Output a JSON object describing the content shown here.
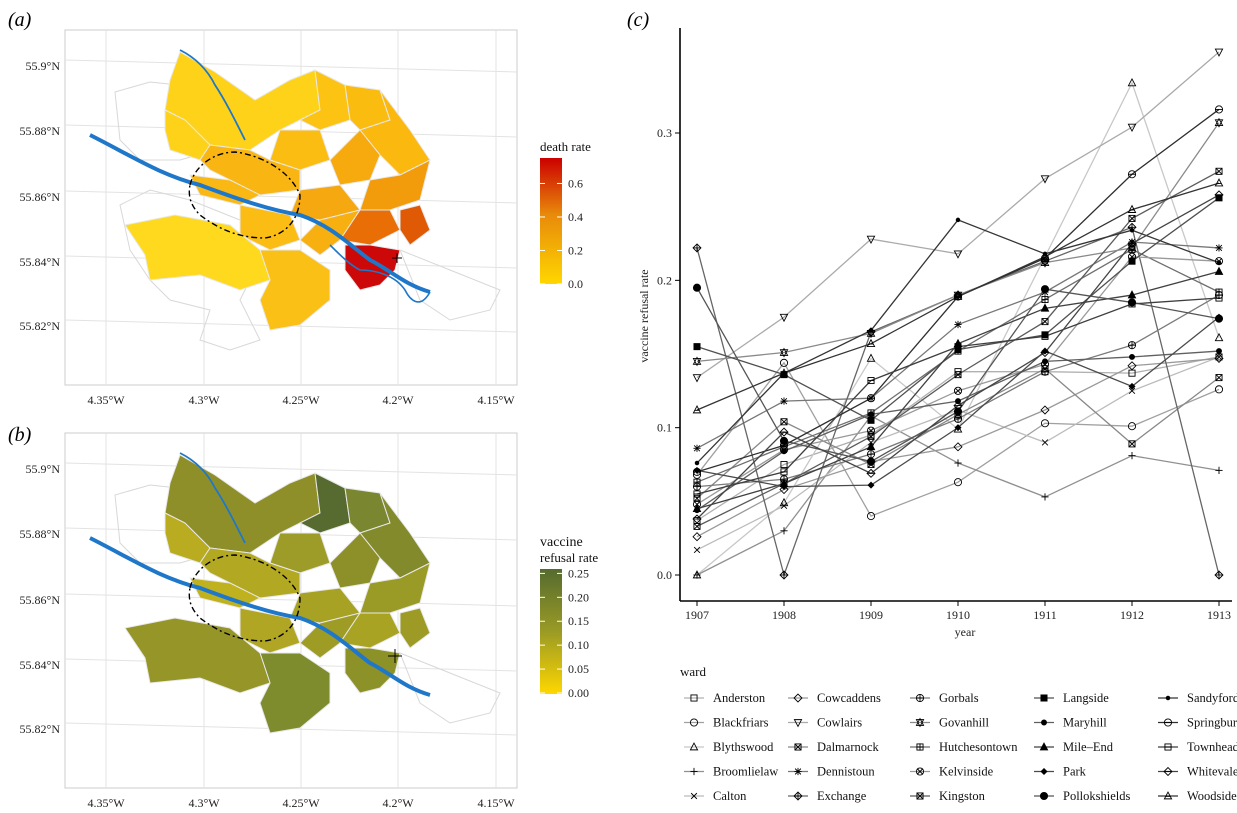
{
  "panels": {
    "a": "(a)",
    "b": "(b)",
    "c": "(c)"
  },
  "maps": {
    "lon_ticks": [
      "4.35°W",
      "4.3°W",
      "4.25°W",
      "4.2°W",
      "4.15°W"
    ],
    "lat_ticks": [
      "55.9°N",
      "55.88°N",
      "55.86°N",
      "55.84°N",
      "55.82°N"
    ],
    "river_color": "#1f77c9",
    "legend_a": {
      "title": "death rate",
      "ticks": [
        "0.6",
        "0.4",
        "0.2",
        "0.0"
      ],
      "colors": [
        "#ffd700",
        "#e05a05",
        "#cc0000"
      ]
    },
    "legend_b": {
      "title_line1": "vaccine",
      "title_line2": "refusal rate",
      "ticks": [
        "0.25",
        "0.20",
        "0.15",
        "0.10",
        "0.05",
        "0.00"
      ],
      "colors": [
        "#ffd700",
        "#6b7f2a",
        "#556b2f"
      ]
    }
  },
  "chart_data": {
    "type": "line",
    "x": [
      1907,
      1908,
      1909,
      1910,
      1911,
      1912,
      1913
    ],
    "xlabel": "year",
    "ylabel": "vaccine refusal rate",
    "ylim": [
      0,
      0.36
    ],
    "yticks": [
      "0.0",
      "0.1",
      "0.2",
      "0.3"
    ],
    "legend_title": "ward",
    "series": [
      {
        "name": "Anderston",
        "marker": "square-open",
        "color": "#b0b0b0",
        "values": [
          0.037,
          0.075,
          0.095,
          0.138,
          0.138,
          0.137,
          0.148
        ]
      },
      {
        "name": "Blackfriars",
        "marker": "circle-open",
        "color": "#a0a0a0",
        "values": [
          0.068,
          0.144,
          0.04,
          0.063,
          0.103,
          0.101,
          0.126
        ]
      },
      {
        "name": "Blythswood",
        "marker": "triangle-open",
        "color": "#c8c8c8",
        "values": [
          0.0,
          0.049,
          0.147,
          0.099,
          0.216,
          0.334,
          0.161
        ]
      },
      {
        "name": "Broomlielaw",
        "marker": "plus",
        "color": "#909090",
        "values": [
          0.0,
          0.03,
          0.108,
          0.076,
          0.053,
          0.081,
          0.071
        ]
      },
      {
        "name": "Calton",
        "marker": "x",
        "color": "#bbbbbb",
        "values": [
          0.017,
          0.047,
          0.09,
          0.112,
          0.09,
          0.125,
          0.148
        ]
      },
      {
        "name": "Cowcaddens",
        "marker": "diamond-open",
        "color": "#999999",
        "values": [
          0.026,
          0.058,
          0.077,
          0.087,
          0.112,
          0.142,
          0.147
        ]
      },
      {
        "name": "Cowlairs",
        "marker": "triangle-down-open",
        "color": "#aaaaaa",
        "values": [
          0.134,
          0.175,
          0.228,
          0.218,
          0.269,
          0.304,
          0.355
        ]
      },
      {
        "name": "Dalmarnock",
        "marker": "square-x",
        "color": "#888888",
        "values": [
          0.052,
          0.104,
          0.075,
          0.109,
          0.14,
          0.089,
          0.134
        ]
      },
      {
        "name": "Dennistoun",
        "marker": "star",
        "color": "#777777",
        "values": [
          0.086,
          0.118,
          0.12,
          0.17,
          0.192,
          0.226,
          0.222
        ]
      },
      {
        "name": "Exchange",
        "marker": "diamond-plus",
        "color": "#666666",
        "values": [
          0.222,
          0.0,
          0.165,
          0.19,
          0.213,
          0.236,
          0.0
        ]
      },
      {
        "name": "Gorbals",
        "marker": "circle-plus",
        "color": "#7a7a7a",
        "values": [
          0.06,
          0.065,
          0.082,
          0.106,
          0.138,
          0.156,
          0.19
        ]
      },
      {
        "name": "Govanhill",
        "marker": "star-of-david",
        "color": "#8a8a8a",
        "values": [
          0.145,
          0.151,
          0.164,
          0.19,
          0.212,
          0.222,
          0.307
        ]
      },
      {
        "name": "Hutchesontown",
        "marker": "square-plus",
        "color": "#6e6e6e",
        "values": [
          0.063,
          0.087,
          0.11,
          0.152,
          0.187,
          0.221,
          0.192
        ]
      },
      {
        "name": "Kelvinside",
        "marker": "circle-x",
        "color": "#9a9a9a",
        "values": [
          0.048,
          0.085,
          0.098,
          0.125,
          0.143,
          0.216,
          0.213
        ]
      },
      {
        "name": "Kingston",
        "marker": "square-x2",
        "color": "#5a5a5a",
        "values": [
          0.033,
          0.062,
          0.094,
          0.136,
          0.172,
          0.242,
          0.274
        ]
      },
      {
        "name": "Langside",
        "marker": "square-filled",
        "color": "#505050",
        "values": [
          0.155,
          0.136,
          0.105,
          0.153,
          0.163,
          0.213,
          0.256
        ]
      },
      {
        "name": "Maryhill",
        "marker": "circle-filled-small",
        "color": "#606060",
        "values": [
          0.044,
          0.084,
          0.109,
          0.118,
          0.145,
          0.148,
          0.152
        ]
      },
      {
        "name": "Mile–End",
        "marker": "triangle-filled",
        "color": "#404040",
        "values": [
          0.045,
          0.062,
          0.087,
          0.157,
          0.181,
          0.19,
          0.206
        ]
      },
      {
        "name": "Park",
        "marker": "diamond-filled",
        "color": "#4a4a4a",
        "values": [
          0.071,
          0.06,
          0.061,
          0.1,
          0.152,
          0.128,
          0.175
        ]
      },
      {
        "name": "Pollokshields",
        "marker": "circle-filled",
        "color": "#555555",
        "values": [
          0.195,
          0.091,
          0.077,
          0.111,
          0.194,
          0.185,
          0.174
        ]
      },
      {
        "name": "Sandyford",
        "marker": "dot",
        "color": "#353535",
        "values": [
          0.076,
          0.137,
          0.166,
          0.241,
          0.218,
          0.234,
          0.212
        ]
      },
      {
        "name": "Springburn",
        "marker": "circle-dash",
        "color": "#2e2e2e",
        "values": [
          0.07,
          0.088,
          0.12,
          0.189,
          0.215,
          0.272,
          0.316
        ]
      },
      {
        "name": "Townhead",
        "marker": "square-dash",
        "color": "#3e3e3e",
        "values": [
          0.055,
          0.07,
          0.132,
          0.155,
          0.162,
          0.184,
          0.188
        ]
      },
      {
        "name": "Whitevale",
        "marker": "diamond-dash",
        "color": "#444444",
        "values": [
          0.038,
          0.097,
          0.069,
          0.115,
          0.151,
          0.225,
          0.258
        ]
      },
      {
        "name": "Woodside",
        "marker": "triangle-dash",
        "color": "#333333",
        "values": [
          0.112,
          0.137,
          0.157,
          0.189,
          0.216,
          0.248,
          0.266
        ]
      }
    ]
  }
}
